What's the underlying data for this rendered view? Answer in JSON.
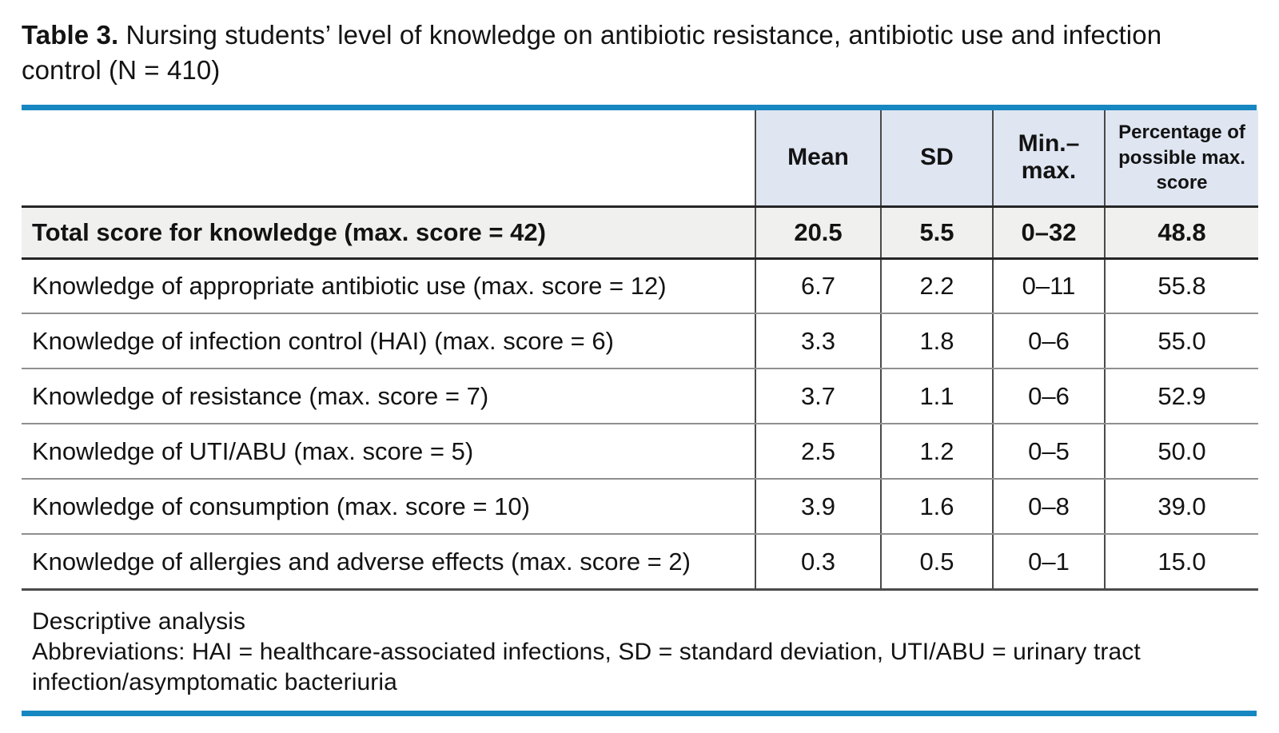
{
  "title": {
    "label": "Table 3.",
    "text": "Nursing students’ level of knowledge on antibiotic resistance, antibiotic use and infection control (N = 410)"
  },
  "colors": {
    "accent": "#1787c1",
    "header_bg": "#dfe6f2",
    "total_row_bg": "#f0f0ef"
  },
  "table": {
    "columns": {
      "label": "",
      "mean": "Mean",
      "sd": "SD",
      "min_max": "Min.–max.",
      "pct": "Percentage of possible max. score"
    },
    "rows": [
      {
        "label": "Total score for knowledge (max. score = 42)",
        "mean": "20.5",
        "sd": "5.5",
        "min_max": "0–32",
        "pct": "48.8"
      },
      {
        "label": "Knowledge of appropriate antibiotic use (max. score = 12)",
        "mean": "6.7",
        "sd": "2.2",
        "min_max": "0–11",
        "pct": "55.8"
      },
      {
        "label": "Knowledge of infection control (HAI) (max. score = 6)",
        "mean": "3.3",
        "sd": "1.8",
        "min_max": "0–6",
        "pct": "55.0"
      },
      {
        "label": "Knowledge of resistance (max. score = 7)",
        "mean": "3.7",
        "sd": "1.1",
        "min_max": "0–6",
        "pct": "52.9"
      },
      {
        "label": "Knowledge of UTI/ABU (max. score = 5)",
        "mean": "2.5",
        "sd": "1.2",
        "min_max": "0–5",
        "pct": "50.0"
      },
      {
        "label": "Knowledge of consumption (max. score = 10)",
        "mean": "3.9",
        "sd": "1.6",
        "min_max": "0–8",
        "pct": "39.0"
      },
      {
        "label": "Knowledge of allergies and adverse effects (max. score = 2)",
        "mean": "0.3",
        "sd": "0.5",
        "min_max": "0–1",
        "pct": "15.0"
      }
    ]
  },
  "footnotes": {
    "line1": "Descriptive analysis",
    "line2": "Abbreviations: HAI = healthcare-associated infections, SD = standard deviation, UTI/ABU = urinary tract infection/asymptomatic bacteriuria"
  }
}
